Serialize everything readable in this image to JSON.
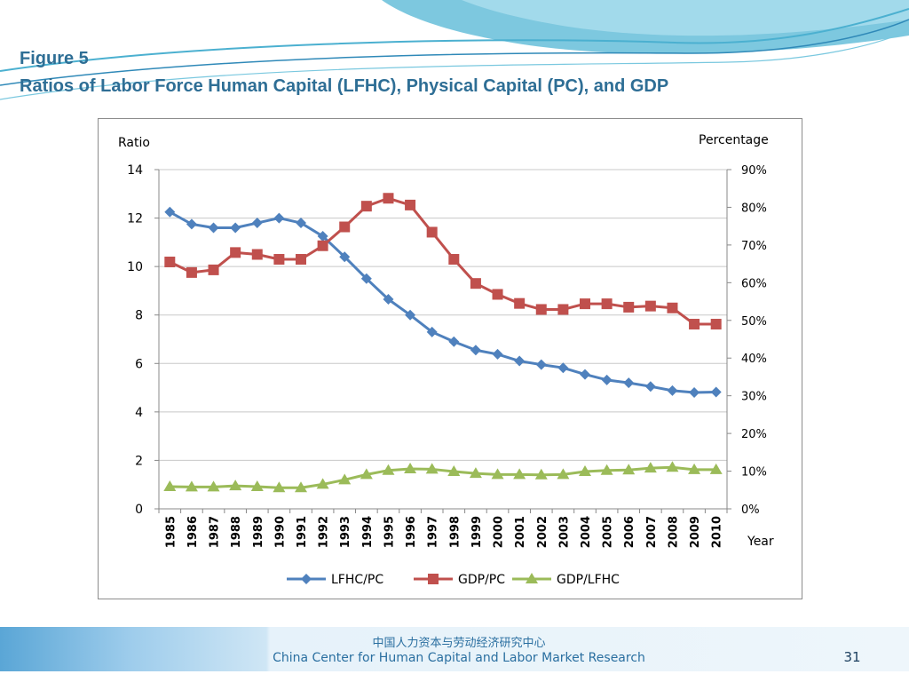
{
  "slide": {
    "figure_label": "Figure 5",
    "figure_caption": "Ratios of Labor Force Human Capital (LFHC), Physical Capital (PC), and GDP",
    "footer_cn": "中国人力资本与劳动经济研究中心",
    "footer_en": "China Center for Human Capital and Labor Market Research",
    "page_number": "31"
  },
  "colors": {
    "title": "#2e6e95",
    "header_wave": "#4bb0d0",
    "footer_text": "#2a6fa0"
  },
  "chart_data": {
    "type": "line",
    "title": "",
    "ylabel": "Ratio",
    "y2label": "Percentage",
    "xlabel": "Year",
    "ylim": [
      0,
      14
    ],
    "yticks": [
      0,
      2,
      4,
      6,
      8,
      10,
      12,
      14
    ],
    "y2lim": [
      0,
      90
    ],
    "y2ticks": [
      "0%",
      "10%",
      "20%",
      "30%",
      "40%",
      "50%",
      "60%",
      "70%",
      "80%",
      "90%"
    ],
    "grid": true,
    "legend_position": "bottom",
    "categories": [
      "1985",
      "1986",
      "1987",
      "1988",
      "1989",
      "1990",
      "1991",
      "1992",
      "1993",
      "1994",
      "1995",
      "1996",
      "1997",
      "1998",
      "1999",
      "2000",
      "2001",
      "2002",
      "2003",
      "2004",
      "2005",
      "2006",
      "2007",
      "2008",
      "2009",
      "2010"
    ],
    "series": [
      {
        "name": "LFHC/PC",
        "axis": "left",
        "color": "#4f81bd",
        "marker": "diamond",
        "values": [
          12.25,
          11.75,
          11.6,
          11.6,
          11.8,
          12.0,
          11.8,
          11.25,
          10.4,
          9.5,
          8.65,
          8.0,
          7.3,
          6.9,
          6.55,
          6.38,
          6.1,
          5.95,
          5.82,
          5.55,
          5.32,
          5.2,
          5.05,
          4.88,
          4.8,
          4.82
        ]
      },
      {
        "name": "GDP/PC",
        "axis": "right",
        "color": "#c0504d",
        "marker": "square",
        "values": [
          65.5,
          62.7,
          63.4,
          68.0,
          67.5,
          66.2,
          66.2,
          69.8,
          74.8,
          80.3,
          82.4,
          80.6,
          73.4,
          66.2,
          59.8,
          56.9,
          54.5,
          52.9,
          52.9,
          54.4,
          54.4,
          53.5,
          53.8,
          53.3,
          49.0,
          49.0
        ]
      },
      {
        "name": "GDP/LFHC",
        "axis": "right",
        "color": "#9bbb59",
        "marker": "triangle",
        "values": [
          5.9,
          5.8,
          5.8,
          6.1,
          5.9,
          5.6,
          5.6,
          6.5,
          7.7,
          9.1,
          10.2,
          10.6,
          10.5,
          9.9,
          9.4,
          9.1,
          9.1,
          9.0,
          9.1,
          9.9,
          10.2,
          10.3,
          10.8,
          11.0,
          10.4,
          10.4
        ]
      }
    ]
  }
}
